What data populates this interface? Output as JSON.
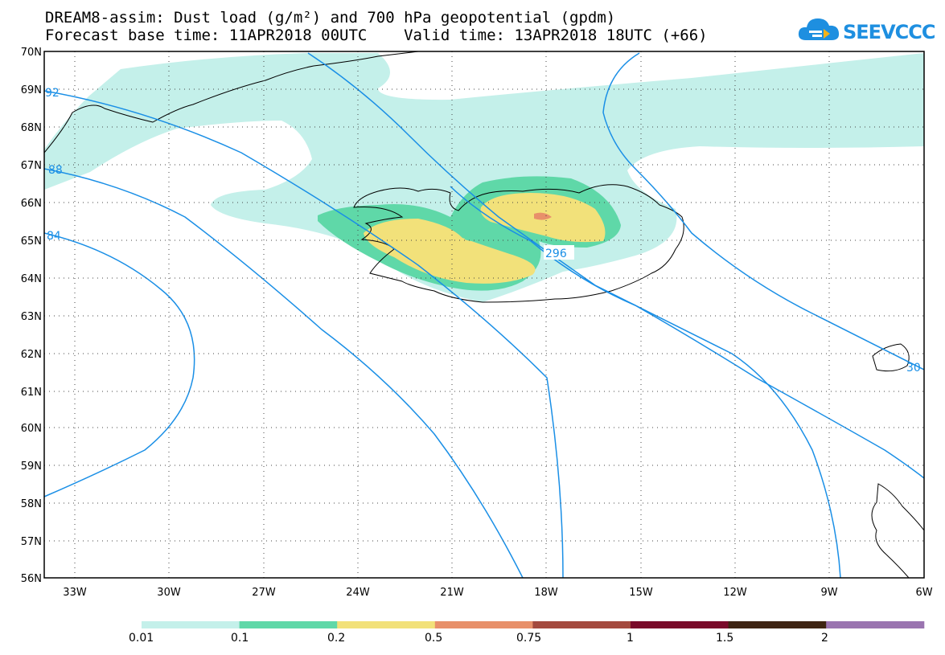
{
  "title": {
    "line1": "DREAM8-assim: Dust load (g/m²) and 700 hPa geopotential (gpdm)",
    "line2": "Forecast base time: 11APR2018 00UTC    Valid time: 13APR2018 18UTC (+66)"
  },
  "logo": {
    "text": "SEEVCCC"
  },
  "axes": {
    "lat_labels": [
      "70N",
      "69N",
      "68N",
      "67N",
      "66N",
      "65N",
      "64N",
      "63N",
      "62N",
      "61N",
      "60N",
      "59N",
      "58N",
      "57N",
      "56N"
    ],
    "lon_labels": [
      "33W",
      "30W",
      "27W",
      "24W",
      "21W",
      "18W",
      "15W",
      "12W",
      "9W",
      "6W"
    ]
  },
  "contour_labels": [
    {
      "text": "92"
    },
    {
      "text": "88"
    },
    {
      "text": "84"
    },
    {
      "text": "296"
    },
    {
      "text": "30"
    }
  ],
  "colorbar": {
    "labels": [
      "0.01",
      "0.1",
      "0.2",
      "0.5",
      "0.75",
      "1",
      "1.5",
      "2"
    ],
    "colors": [
      "#c4f0ea",
      "#5fd8a8",
      "#f2e17a",
      "#e8906a",
      "#a44a3e",
      "#7a0a2a",
      "#3e2412",
      "#9a74b0"
    ]
  }
}
